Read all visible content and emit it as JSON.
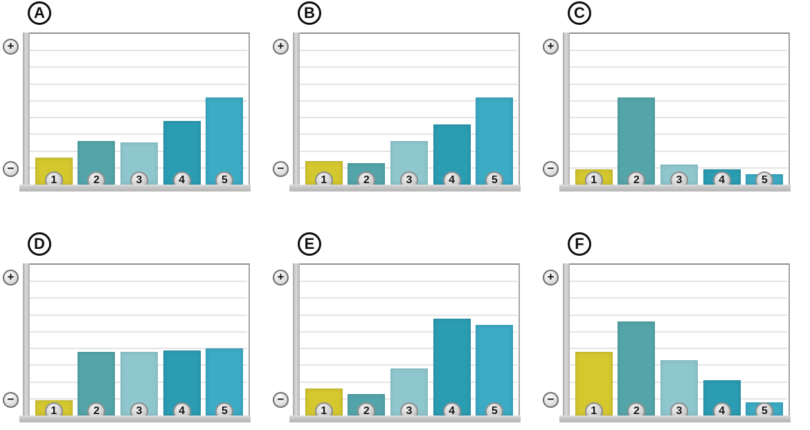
{
  "figure": {
    "background": "#ffffff",
    "grid_color": "#e4e4e4",
    "axis_bar_color": "#c0c0c0",
    "bar_colors": [
      "#d5c82f",
      "#54a5aa",
      "#8fc7ce",
      "#2b9db2",
      "#3cabc4"
    ],
    "bar_border_colors": [
      "#beb128",
      "#47969c",
      "#7eb8bf",
      "#21899f",
      "#2f99b4"
    ]
  },
  "axis": {
    "plus": "+",
    "minus": "−"
  },
  "chart_data": [
    {
      "panel": "A",
      "type": "bar",
      "categories": [
        "1",
        "2",
        "3",
        "4",
        "5"
      ],
      "values": [
        1.6,
        2.6,
        2.5,
        3.8,
        5.2
      ],
      "ymax": 9,
      "gridlines": 8,
      "title": "",
      "xlabel": "",
      "ylabel": "",
      "y_axis_annotation": {
        "top": "+",
        "bottom": "−"
      },
      "legend": false
    },
    {
      "panel": "B",
      "type": "bar",
      "categories": [
        "1",
        "2",
        "3",
        "4",
        "5"
      ],
      "values": [
        1.4,
        1.3,
        2.6,
        3.6,
        5.2
      ],
      "ymax": 9,
      "gridlines": 8,
      "title": "",
      "xlabel": "",
      "ylabel": "",
      "y_axis_annotation": {
        "top": "+",
        "bottom": "−"
      },
      "legend": false
    },
    {
      "panel": "C",
      "type": "bar",
      "categories": [
        "1",
        "2",
        "3",
        "4",
        "5"
      ],
      "values": [
        0.9,
        5.2,
        1.2,
        0.9,
        0.6
      ],
      "ymax": 9,
      "gridlines": 8,
      "title": "",
      "xlabel": "",
      "ylabel": "",
      "y_axis_annotation": {
        "top": "+",
        "bottom": "−"
      },
      "legend": false
    },
    {
      "panel": "D",
      "type": "bar",
      "categories": [
        "1",
        "2",
        "3",
        "4",
        "5"
      ],
      "values": [
        0.9,
        3.8,
        3.8,
        3.9,
        4.0
      ],
      "ymax": 9,
      "gridlines": 8,
      "title": "",
      "xlabel": "",
      "ylabel": "",
      "y_axis_annotation": {
        "top": "+",
        "bottom": "−"
      },
      "legend": false
    },
    {
      "panel": "E",
      "type": "bar",
      "categories": [
        "1",
        "2",
        "3",
        "4",
        "5"
      ],
      "values": [
        1.6,
        1.3,
        2.8,
        5.8,
        5.4
      ],
      "ymax": 9,
      "gridlines": 8,
      "title": "",
      "xlabel": "",
      "ylabel": "",
      "y_axis_annotation": {
        "top": "+",
        "bottom": "−"
      },
      "legend": false
    },
    {
      "panel": "F",
      "type": "bar",
      "categories": [
        "1",
        "2",
        "3",
        "4",
        "5"
      ],
      "values": [
        3.8,
        5.6,
        3.3,
        2.1,
        0.8
      ],
      "ymax": 9,
      "gridlines": 8,
      "title": "",
      "xlabel": "",
      "ylabel": "",
      "y_axis_annotation": {
        "top": "+",
        "bottom": "−"
      },
      "legend": false
    }
  ]
}
